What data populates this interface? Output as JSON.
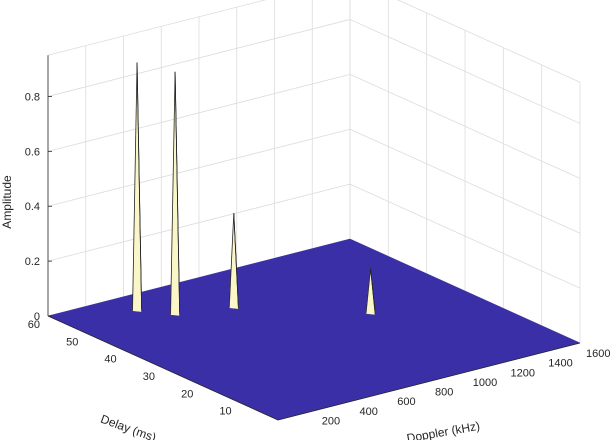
{
  "chart_data": {
    "type": "surface",
    "title": "",
    "xlabel": "Doppler (kHz)",
    "ylabel": "Delay (ms)",
    "zlabel": "Amplitude",
    "xlim": [
      0,
      1600
    ],
    "ylim": [
      0,
      60
    ],
    "zlim": [
      0,
      0.95
    ],
    "x_ticks": [
      "200",
      "400",
      "600",
      "800",
      "1000",
      "1200",
      "1400",
      "1600"
    ],
    "y_ticks": [
      "10",
      "20",
      "30",
      "40",
      "50",
      "60"
    ],
    "z_ticks": [
      "0",
      "0.2",
      "0.4",
      "0.6",
      "0.8"
    ],
    "grid": true,
    "floor_color": "#3a2fa6",
    "peaks": [
      {
        "doppler": 350,
        "delay": 54,
        "amplitude": 0.9
      },
      {
        "doppler": 450,
        "delay": 49,
        "amplitude": 0.88
      },
      {
        "doppler": 700,
        "delay": 46,
        "amplitude": 0.34
      },
      {
        "doppler": 1120,
        "delay": 31,
        "amplitude": 0.16
      }
    ]
  }
}
